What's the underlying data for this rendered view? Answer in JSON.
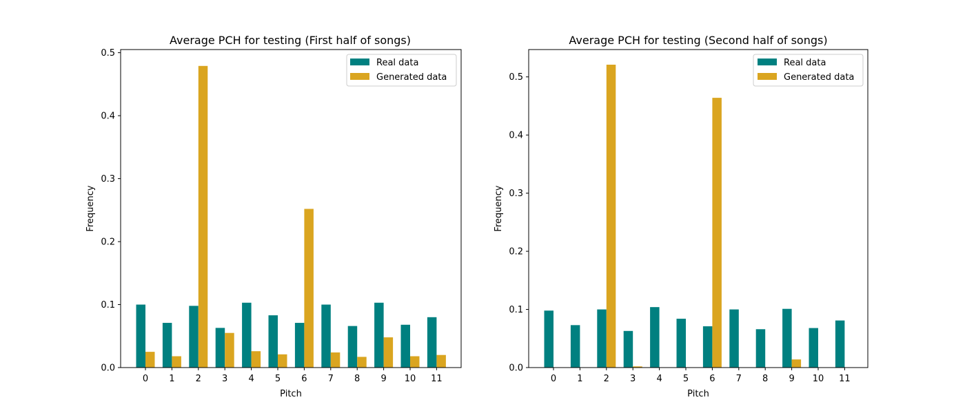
{
  "colors": {
    "real": "#008080",
    "generated": "#daa520"
  },
  "chart_data": [
    {
      "type": "bar",
      "title": "Average PCH for testing (First half of songs)",
      "xlabel": "Pitch",
      "ylabel": "Frequency",
      "categories": [
        "0",
        "1",
        "2",
        "3",
        "4",
        "5",
        "6",
        "7",
        "8",
        "9",
        "10",
        "11"
      ],
      "ylim": [
        0,
        0.505
      ],
      "yticks": [
        "0.0",
        "0.1",
        "0.2",
        "0.3",
        "0.4",
        "0.5"
      ],
      "legend": "top-right",
      "series": [
        {
          "name": "Real data",
          "values": [
            0.1,
            0.071,
            0.098,
            0.063,
            0.103,
            0.083,
            0.071,
            0.1,
            0.066,
            0.103,
            0.068,
            0.08
          ]
        },
        {
          "name": "Generated data",
          "values": [
            0.025,
            0.018,
            0.479,
            0.055,
            0.026,
            0.021,
            0.252,
            0.024,
            0.017,
            0.048,
            0.018,
            0.02
          ]
        }
      ]
    },
    {
      "type": "bar",
      "title": "Average PCH for testing (Second half of songs)",
      "xlabel": "Pitch",
      "ylabel": "Frequency",
      "categories": [
        "0",
        "1",
        "2",
        "3",
        "4",
        "5",
        "6",
        "7",
        "8",
        "9",
        "10",
        "11"
      ],
      "ylim": [
        0,
        0.547
      ],
      "yticks": [
        "0.0",
        "0.1",
        "0.2",
        "0.3",
        "0.4",
        "0.5"
      ],
      "legend": "top-right",
      "series": [
        {
          "name": "Real data",
          "values": [
            0.098,
            0.073,
            0.1,
            0.063,
            0.104,
            0.084,
            0.071,
            0.1,
            0.066,
            0.101,
            0.068,
            0.081
          ]
        },
        {
          "name": "Generated data",
          "values": [
            0.0,
            0.0,
            0.521,
            0.002,
            0.0,
            0.0,
            0.464,
            0.0,
            0.0,
            0.014,
            0.0,
            0.0
          ]
        }
      ]
    }
  ]
}
